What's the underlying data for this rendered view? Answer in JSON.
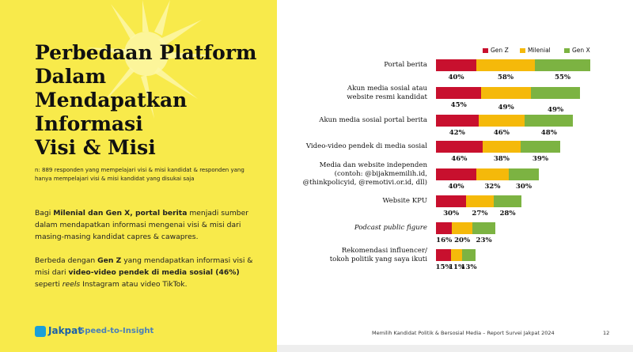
{
  "slide": {
    "title_lines": [
      "Perbedaan Platform",
      "Dalam",
      "Mendapatkan",
      "Informasi",
      "Visi & Misi"
    ],
    "note": "n: 889 responden yang mempelajari visi & misi kandidat & responden yang hanya mempelajari visi & misi kandidat yang disukai saja",
    "paragraphs": [
      [
        {
          "text": "Bagi ",
          "style": "normal"
        },
        {
          "text": "Milenial dan Gen X, portal berita",
          "style": "bold"
        },
        {
          "text": " menjadi sumber dalam mendapatkan informasi mengenai visi & misi dari masing-masing kandidat capres & cawapres.",
          "style": "normal"
        }
      ],
      [
        {
          "text": "Berbeda dengan ",
          "style": "normal"
        },
        {
          "text": "Gen Z",
          "style": "bold"
        },
        {
          "text": " yang mendapatkan informasi visi & misi dari ",
          "style": "normal"
        },
        {
          "text": "video-video pendek di media sosial (46%)",
          "style": "bold"
        },
        {
          "text": " seperti ",
          "style": "normal"
        },
        {
          "text": "reels",
          "style": "italic"
        },
        {
          "text": " Instagram atau video TikTok.",
          "style": "normal"
        }
      ]
    ],
    "brand": "Jakpat",
    "tagline": "Speed-to-Insight",
    "footer": "Memilih Kandidat Politik & Bersosial Media – Report Survei Jakpat 2024",
    "page_number": "12"
  },
  "chart_data": {
    "type": "stacked-bar-horizontal",
    "legend": "top-right",
    "categories": [
      "Portal berita",
      "Akun media sosial atau\nwebsite resmi kandidat",
      "Akun media sosial portal berita",
      "Video-video pendek di media sosial",
      "Media dan website independen\n(contoh: @bijakmemilih.id,\n@thinkpolicyid, @remotivi.or.id, dll)",
      "Website KPU",
      "Podcast public figure",
      "Rekomendasi influencer/\ntokoh politik yang saya ikuti"
    ],
    "series": [
      {
        "name": "Gen Z",
        "color": "#c8102e",
        "values": [
          40,
          45,
          42,
          46,
          40,
          30,
          16,
          15
        ],
        "value_labels": [
          "40%",
          "45%",
          "42%",
          "46%",
          "40%",
          "30%",
          "16%",
          "15%"
        ]
      },
      {
        "name": "Milenial",
        "color": "#f5b90a",
        "values": [
          58,
          49,
          46,
          38,
          32,
          27,
          20,
          11
        ],
        "value_labels": [
          "58%",
          "49%",
          "46%",
          "38%",
          "32%",
          "27%",
          "20%",
          "11%"
        ]
      },
      {
        "name": "Gen X",
        "color": "#7cb342",
        "values": [
          55,
          49,
          48,
          39,
          30,
          28,
          23,
          13
        ],
        "value_labels": [
          "55%",
          "49%",
          "48%",
          "39%",
          "30%",
          "28%",
          "23%",
          "13%"
        ]
      }
    ]
  }
}
